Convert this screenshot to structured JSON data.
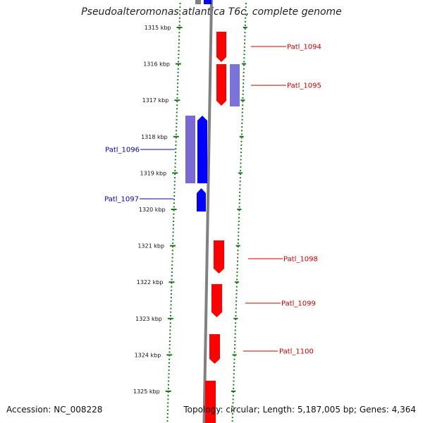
{
  "title": "Pseudoalteromonas atlantica T6c, complete genome",
  "footer": {
    "accession": "Accession: NC_008228",
    "summary": "Topology: circular; Length: 5,187,005 bp; Genes: 4,364"
  },
  "colors": {
    "forward_gene": "#ff0000",
    "reverse_gene": "#0000ff",
    "forward_gene_dim": "#7a73d9",
    "reverse_gene_dim": "#7a68d6",
    "backbone": "#808080",
    "tick": "#1a7a1a",
    "forward_label": "#cc0000",
    "reverse_label": "#0000cc"
  },
  "scale": {
    "ticks": [
      {
        "label": "1315 kbp"
      },
      {
        "label": "1316 kbp"
      },
      {
        "label": "1317 kbp"
      },
      {
        "label": "1318 kbp"
      },
      {
        "label": "1319 kbp"
      },
      {
        "label": "1320 kbp"
      },
      {
        "label": "1321 kbp"
      },
      {
        "label": "1322 kbp"
      },
      {
        "label": "1323 kbp"
      },
      {
        "label": "1324 kbp"
      },
      {
        "label": "1325 kbp"
      }
    ]
  },
  "genes": [
    {
      "label": "Patl_1094",
      "strand": "+"
    },
    {
      "label": "Patl_1095",
      "strand": "+"
    },
    {
      "label": "Patl_1096",
      "strand": "-"
    },
    {
      "label": "Patl_1097",
      "strand": "-"
    },
    {
      "label": "Patl_1098",
      "strand": "+"
    },
    {
      "label": "Patl_1099",
      "strand": "+"
    },
    {
      "label": "Patl_1100",
      "strand": "+"
    }
  ]
}
